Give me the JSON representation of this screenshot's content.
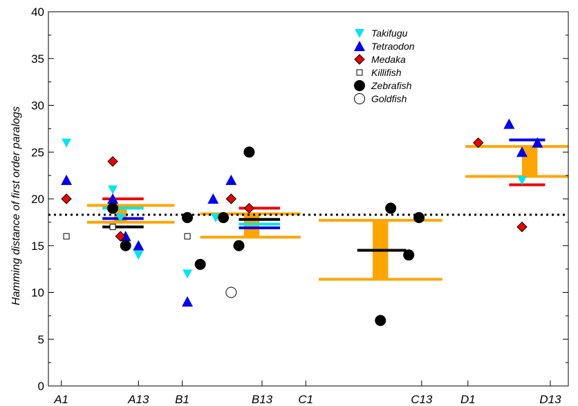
{
  "chart_data": {
    "type": "scatter",
    "title": "",
    "xlabel": "",
    "ylabel": "Hamming distance of first order paralogs",
    "ylim": [
      0,
      40
    ],
    "yticks": [
      0,
      5,
      10,
      15,
      20,
      25,
      30,
      35,
      40
    ],
    "xlim": [
      -0.5,
      19.7
    ],
    "xticks": [
      {
        "x": 0,
        "label": "A1"
      },
      {
        "x": 3,
        "label": "A13"
      },
      {
        "x": 4.7,
        "label": "B1"
      },
      {
        "x": 7.8,
        "label": "B13"
      },
      {
        "x": 9.5,
        "label": "C1"
      },
      {
        "x": 14.0,
        "label": "C13"
      },
      {
        "x": 15.8,
        "label": "D1"
      },
      {
        "x": 19.0,
        "label": "D13"
      }
    ],
    "reference_line": {
      "y": 18.3,
      "style": "dotted",
      "color": "#000000"
    },
    "legend_position": "top-center",
    "colors": {
      "takifugu": "#00e5ee",
      "tetraodon": "#0000ee",
      "medaka": "#ee0000",
      "orange": "#ffa500",
      "black": "#000000"
    },
    "series": [
      {
        "name": "Takifugu",
        "marker": "triangle-down",
        "color": "#00e5ee",
        "points": [
          [
            0.2,
            26
          ],
          [
            2.0,
            21
          ],
          [
            2.3,
            18
          ],
          [
            3.0,
            14
          ],
          [
            4.9,
            12
          ],
          [
            6.0,
            18
          ],
          [
            17.9,
            22
          ]
        ]
      },
      {
        "name": "Tetraodon",
        "marker": "triangle-up",
        "color": "#0000ee",
        "points": [
          [
            0.2,
            22
          ],
          [
            2.0,
            20
          ],
          [
            2.5,
            16
          ],
          [
            3.0,
            15
          ],
          [
            4.9,
            9
          ],
          [
            5.9,
            20
          ],
          [
            6.6,
            22
          ],
          [
            17.4,
            28
          ],
          [
            17.9,
            25
          ],
          [
            18.5,
            26
          ]
        ]
      },
      {
        "name": "Medaka",
        "marker": "diamond",
        "color": "#ee0000",
        "points": [
          [
            0.2,
            20
          ],
          [
            2.0,
            24
          ],
          [
            2.3,
            16
          ],
          [
            6.6,
            20
          ],
          [
            7.3,
            19
          ],
          [
            16.2,
            26
          ],
          [
            17.9,
            17
          ]
        ]
      },
      {
        "name": "Killifish",
        "marker": "square-open",
        "color": "#000000",
        "points": [
          [
            0.2,
            16
          ],
          [
            2.0,
            17
          ],
          [
            4.9,
            16
          ]
        ]
      },
      {
        "name": "Zebrafish",
        "marker": "circle-filled",
        "color": "#000000",
        "points": [
          [
            2.0,
            19
          ],
          [
            2.5,
            15
          ],
          [
            4.9,
            18
          ],
          [
            5.4,
            13
          ],
          [
            6.3,
            18
          ],
          [
            6.9,
            15
          ],
          [
            7.3,
            25
          ],
          [
            12.8,
            19
          ],
          [
            13.5,
            14
          ],
          [
            13.9,
            18
          ],
          [
            12.4,
            7
          ]
        ]
      },
      {
        "name": "Goldfish",
        "marker": "circle-open",
        "color": "#000000",
        "points": [
          [
            6.6,
            10
          ]
        ]
      }
    ],
    "summary_lines": [
      {
        "color": "#ffa500",
        "x": [
          1.0,
          4.4
        ],
        "y": 19.3
      },
      {
        "color": "#ffa500",
        "x": [
          1.0,
          4.4
        ],
        "y": 17.5
      },
      {
        "color": "#ee0000",
        "x": [
          1.6,
          3.2
        ],
        "y": 20.0
      },
      {
        "color": "#00e5ee",
        "x": [
          1.6,
          3.2
        ],
        "y": 19.0
      },
      {
        "color": "#0000ee",
        "x": [
          1.6,
          3.2
        ],
        "y": 17.9
      },
      {
        "color": "#000000",
        "x": [
          1.6,
          3.2
        ],
        "y": 17.0
      },
      {
        "color": "#ffa500",
        "x": [
          5.4,
          9.3
        ],
        "y": 18.4
      },
      {
        "color": "#ffa500",
        "x": [
          5.4,
          9.3
        ],
        "y": 15.9
      },
      {
        "color": "#ee0000",
        "x": [
          6.9,
          8.5
        ],
        "y": 19.0
      },
      {
        "color": "#000000",
        "x": [
          6.9,
          8.5
        ],
        "y": 17.8
      },
      {
        "color": "#00e5ee",
        "x": [
          6.9,
          8.5
        ],
        "y": 17.3
      },
      {
        "color": "#0000ee",
        "x": [
          6.9,
          8.5
        ],
        "y": 16.9
      },
      {
        "color": "#ffa500",
        "x": [
          10.0,
          14.8
        ],
        "y": 17.7
      },
      {
        "color": "#ffa500",
        "x": [
          10.0,
          14.8
        ],
        "y": 11.4
      },
      {
        "color": "#000000",
        "x": [
          11.5,
          13.4
        ],
        "y": 14.5
      },
      {
        "color": "#ffa500",
        "x": [
          15.7,
          19.7
        ],
        "y": 25.6
      },
      {
        "color": "#ffa500",
        "x": [
          15.7,
          19.7
        ],
        "y": 22.4
      },
      {
        "color": "#0000ee",
        "x": [
          17.4,
          18.8
        ],
        "y": 26.3
      },
      {
        "color": "#ee0000",
        "x": [
          17.4,
          18.8
        ],
        "y": 21.5
      }
    ],
    "bars": [
      {
        "color": "#ffa500",
        "x": 2.3,
        "width": 0.5,
        "y": [
          17.5,
          19.3
        ]
      },
      {
        "color": "#ffa500",
        "x": 7.4,
        "width": 0.6,
        "y": [
          15.9,
          18.4
        ]
      },
      {
        "color": "#ffa500",
        "x": 12.4,
        "width": 0.6,
        "y": [
          11.4,
          17.7
        ]
      },
      {
        "color": "#ffa500",
        "x": 18.2,
        "width": 0.6,
        "y": [
          22.4,
          25.6
        ]
      }
    ]
  }
}
